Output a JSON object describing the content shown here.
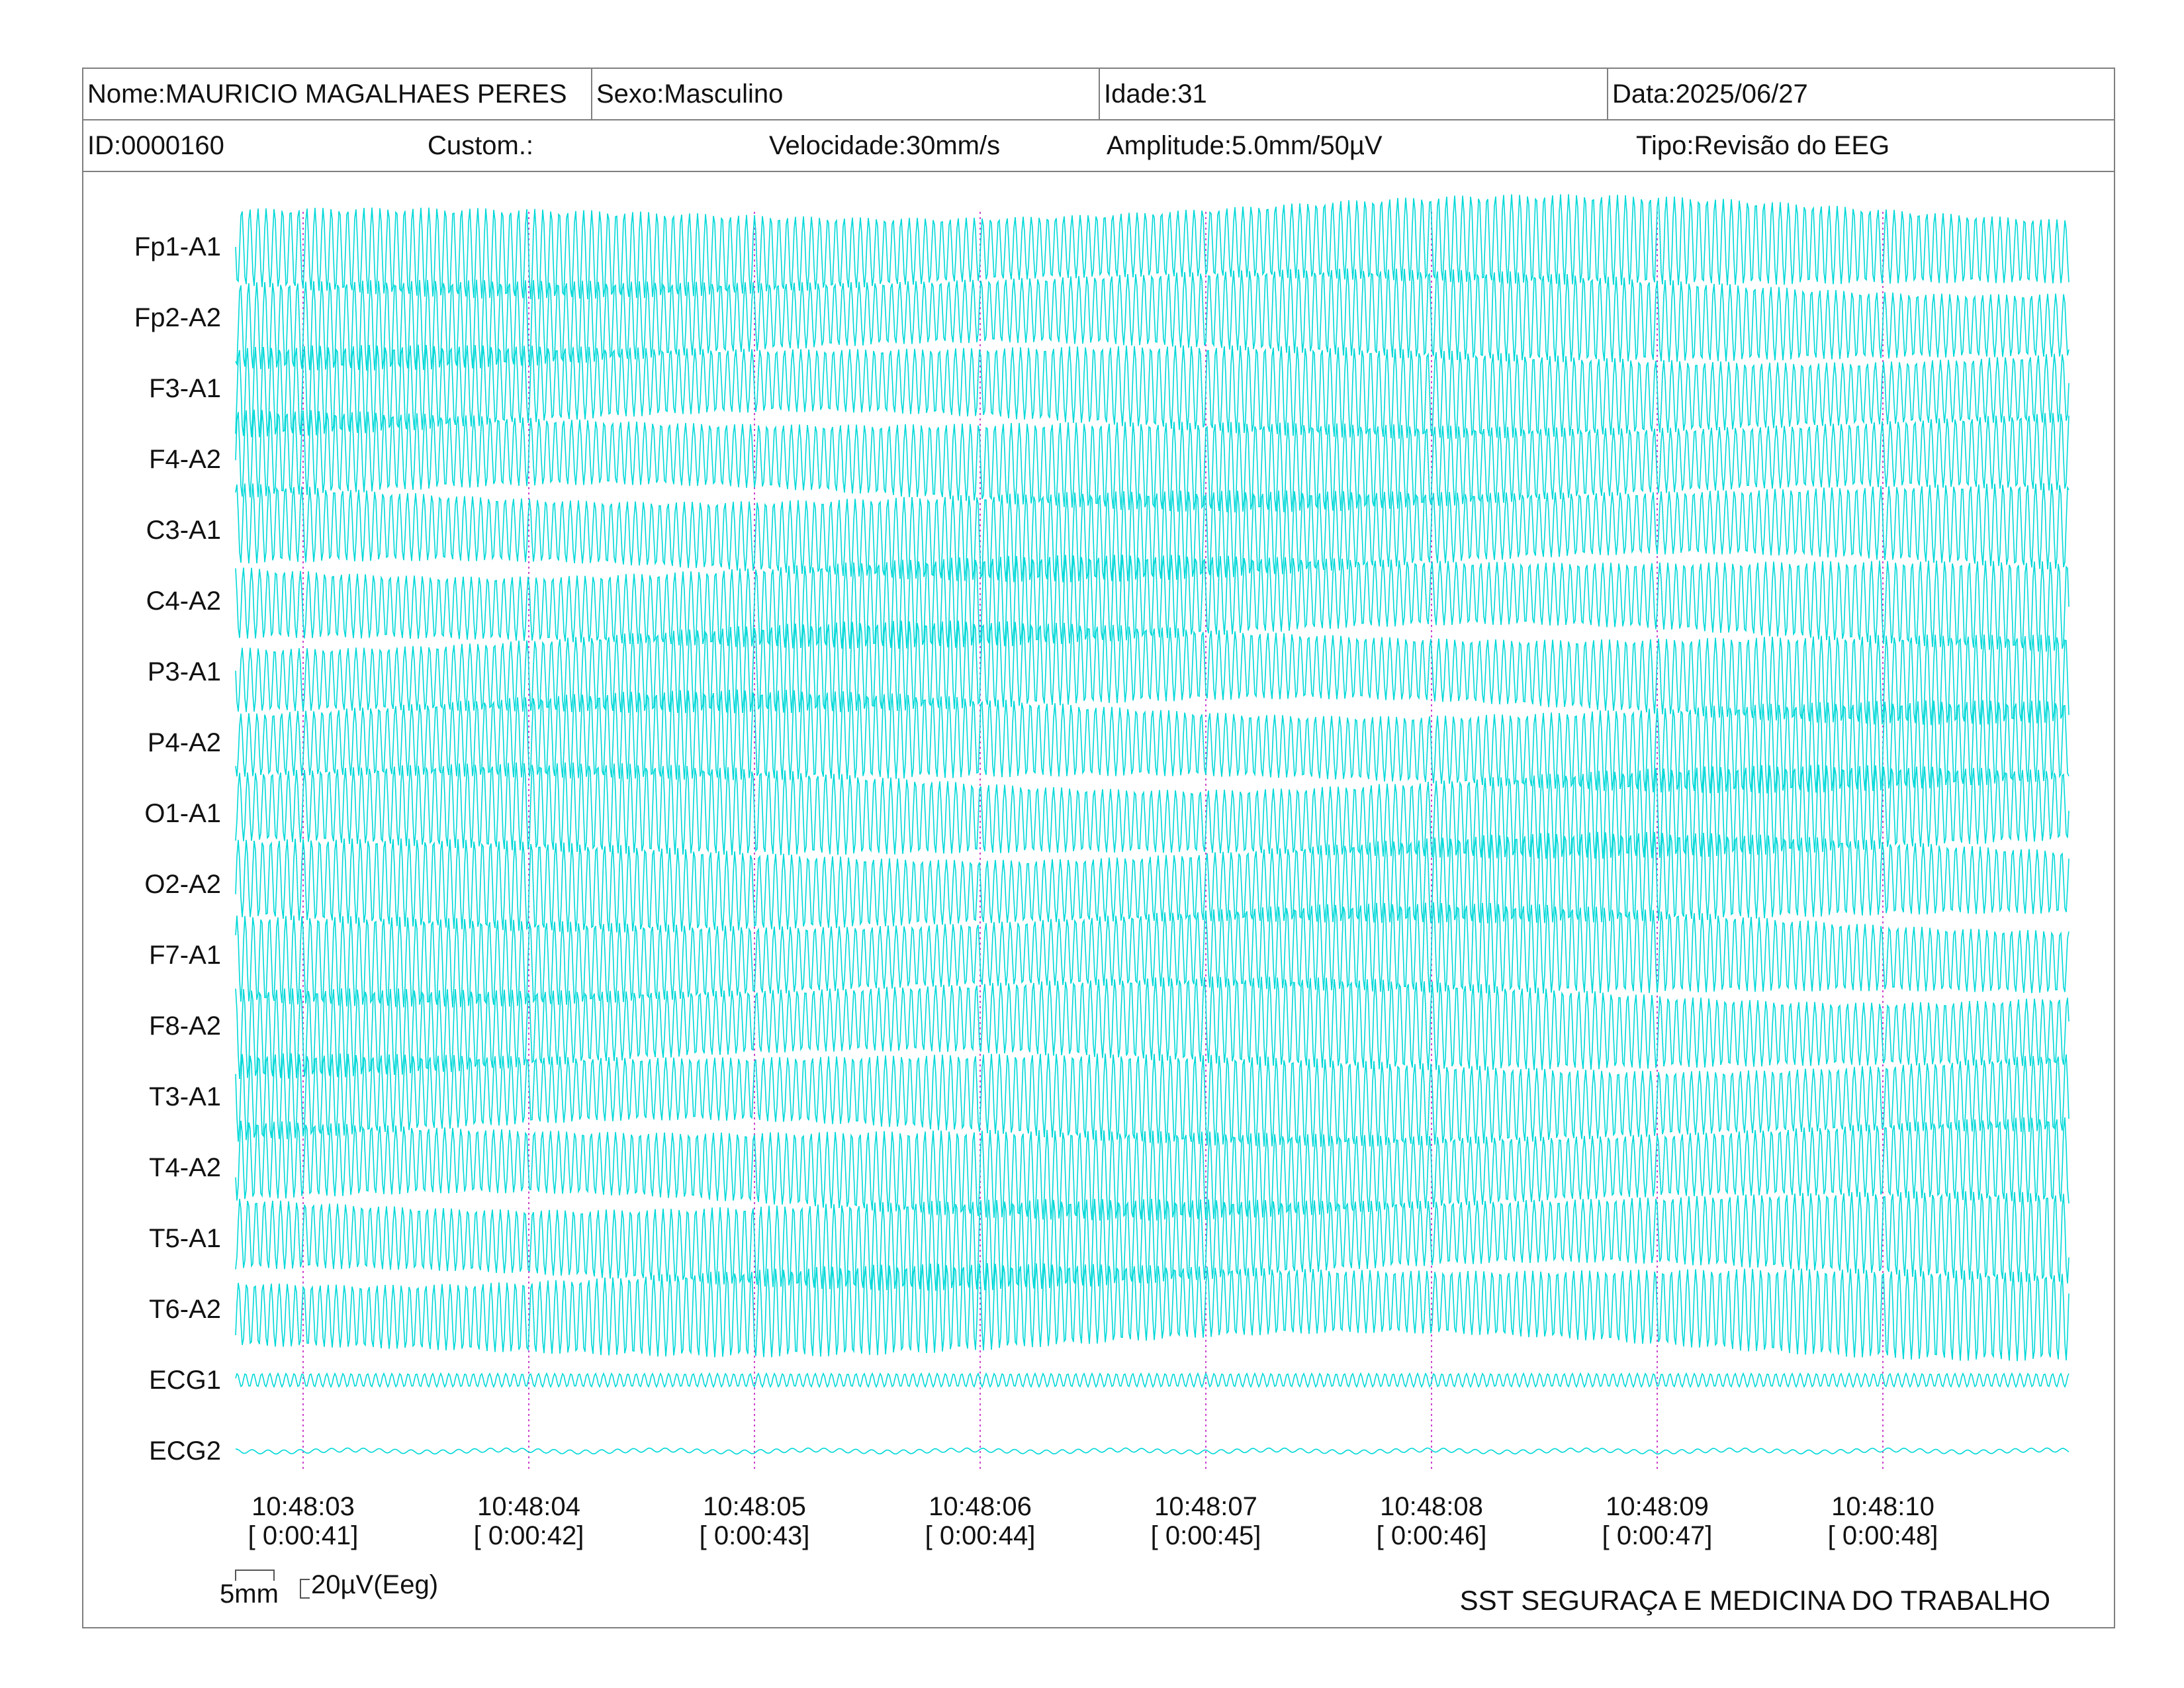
{
  "header": {
    "nome": "Nome:MAURICIO MAGALHAES PERES",
    "sexo": "Sexo:Masculino",
    "idade": "Idade:31",
    "data": "Data:2025/06/27",
    "id": "ID:0000160",
    "custom": "Custom.:",
    "velocidade": "Velocidade:30mm/s",
    "amplitude": "Amplitude:5.0mm/50µV",
    "tipo": "Tipo:Revisão do EEG"
  },
  "channels": [
    {
      "label": "Fp1-A1",
      "kind": "eeg"
    },
    {
      "label": "Fp2-A2",
      "kind": "eeg"
    },
    {
      "label": "F3-A1",
      "kind": "eeg"
    },
    {
      "label": "F4-A2",
      "kind": "eeg"
    },
    {
      "label": "C3-A1",
      "kind": "eeg"
    },
    {
      "label": "C4-A2",
      "kind": "eeg"
    },
    {
      "label": "P3-A1",
      "kind": "eeg"
    },
    {
      "label": "P4-A2",
      "kind": "eeg"
    },
    {
      "label": "O1-A1",
      "kind": "eeg"
    },
    {
      "label": "O2-A2",
      "kind": "eeg"
    },
    {
      "label": "F7-A1",
      "kind": "eeg"
    },
    {
      "label": "F8-A2",
      "kind": "eeg"
    },
    {
      "label": "T3-A1",
      "kind": "eeg"
    },
    {
      "label": "T4-A2",
      "kind": "eeg"
    },
    {
      "label": "T5-A1",
      "kind": "eeg"
    },
    {
      "label": "T6-A2",
      "kind": "eeg"
    },
    {
      "label": "ECG1",
      "kind": "ecg"
    },
    {
      "label": "ECG2",
      "kind": "ecg-flat"
    }
  ],
  "time_marks": [
    {
      "clock": "10:48:03",
      "elapsed": "[ 0:00:41]"
    },
    {
      "clock": "10:48:04",
      "elapsed": "[ 0:00:42]"
    },
    {
      "clock": "10:48:05",
      "elapsed": "[ 0:00:43]"
    },
    {
      "clock": "10:48:06",
      "elapsed": "[ 0:00:44]"
    },
    {
      "clock": "10:48:07",
      "elapsed": "[ 0:00:45]"
    },
    {
      "clock": "10:48:08",
      "elapsed": "[ 0:00:46]"
    },
    {
      "clock": "10:48:09",
      "elapsed": "[ 0:00:47]"
    },
    {
      "clock": "10:48:10",
      "elapsed": "[ 0:00:48]"
    }
  ],
  "scale": {
    "time": "5mm",
    "amplitude": "20µV(Eeg)"
  },
  "footer": {
    "company": "SST SEGURAÇA E MEDICINA DO TRABALHO"
  },
  "colors": {
    "trace": "#00d8d8",
    "time_marker": "#cc44cc",
    "border": "#7f7f7f"
  }
}
